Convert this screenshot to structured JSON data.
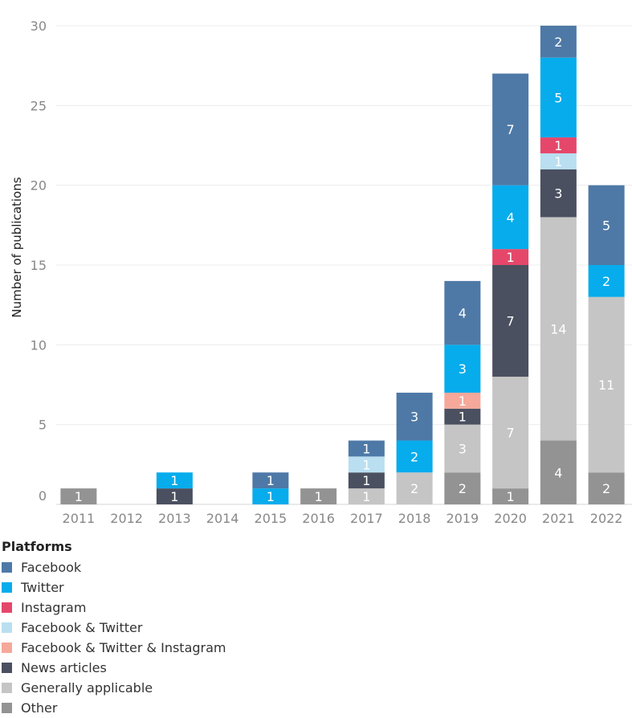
{
  "chart_data": {
    "type": "bar",
    "stacked": true,
    "ylabel": "Number of publications",
    "xlabel": "",
    "ylim": [
      0,
      30
    ],
    "yticks": [
      0,
      5,
      10,
      15,
      20,
      25,
      30
    ],
    "grid": true,
    "categories": [
      "2011",
      "2012",
      "2013",
      "2014",
      "2015",
      "2016",
      "2017",
      "2018",
      "2019",
      "2020",
      "2021",
      "2022"
    ],
    "series": [
      {
        "name": "Other",
        "color": "#939393",
        "values": [
          1,
          0,
          0,
          0,
          0,
          1,
          0,
          0,
          2,
          1,
          4,
          2
        ]
      },
      {
        "name": "Generally applicable",
        "color": "#c5c5c5",
        "values": [
          0,
          0,
          0,
          0,
          0,
          0,
          1,
          2,
          3,
          7,
          14,
          11
        ]
      },
      {
        "name": "News articles",
        "color": "#4b5060",
        "values": [
          0,
          0,
          1,
          0,
          0,
          0,
          1,
          0,
          1,
          7,
          3,
          0
        ]
      },
      {
        "name": "Facebook & Twitter & Instagram",
        "color": "#f6a89a",
        "values": [
          0,
          0,
          0,
          0,
          0,
          0,
          0,
          0,
          1,
          0,
          0,
          0
        ]
      },
      {
        "name": "Facebook & Twitter",
        "color": "#b9dff0",
        "values": [
          0,
          0,
          0,
          0,
          0,
          0,
          1,
          0,
          0,
          0,
          1,
          0
        ]
      },
      {
        "name": "Instagram",
        "color": "#e5476a",
        "values": [
          0,
          0,
          0,
          0,
          0,
          0,
          0,
          0,
          0,
          1,
          1,
          0
        ]
      },
      {
        "name": "Twitter",
        "color": "#06acec",
        "values": [
          0,
          0,
          1,
          0,
          1,
          0,
          0,
          2,
          3,
          4,
          5,
          2
        ]
      },
      {
        "name": "Facebook",
        "color": "#4e79a7",
        "values": [
          0,
          0,
          0,
          0,
          1,
          0,
          1,
          3,
          4,
          7,
          2,
          5
        ]
      }
    ],
    "legend": {
      "title": "Platforms",
      "placement": "bottom-left",
      "order": [
        "Facebook",
        "Twitter",
        "Instagram",
        "Facebook & Twitter",
        "Facebook & Twitter & Instagram",
        "News articles",
        "Generally applicable",
        "Other"
      ]
    }
  }
}
